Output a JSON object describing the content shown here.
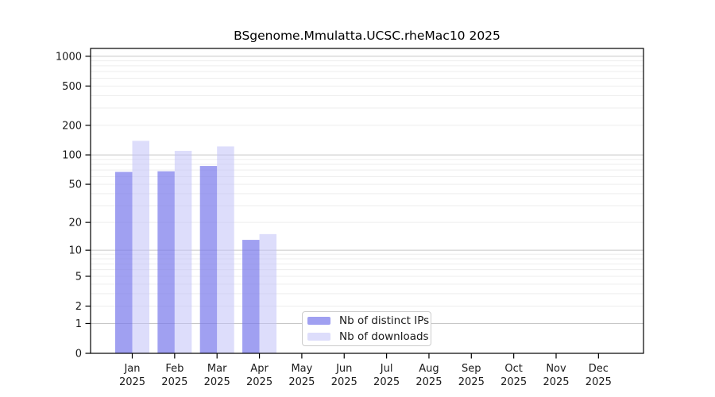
{
  "chart_data": {
    "type": "bar",
    "title": "BSgenome.Mmulatta.UCSC.rheMac10 2025",
    "xlabel": "",
    "ylabel": "",
    "yscale": "log2(1+x)",
    "yticks": [
      0,
      1,
      2,
      5,
      10,
      20,
      50,
      100,
      200,
      500,
      1000
    ],
    "ylim": [
      0,
      1200
    ],
    "grid": {
      "major_values": [
        1,
        10,
        100,
        1000
      ],
      "major_color": "#c6c6c6",
      "minor_color": "#ededed"
    },
    "categories": [
      "Jan 2025",
      "Feb 2025",
      "Mar 2025",
      "Apr 2025",
      "May 2025",
      "Jun 2025",
      "Jul 2025",
      "Aug 2025",
      "Sep 2025",
      "Oct 2025",
      "Nov 2025",
      "Dec 2025"
    ],
    "series": [
      {
        "name": "Nb of distinct IPs",
        "key": "distinct-ips",
        "color": "#7c7ceb",
        "alpha": 0.72,
        "values": [
          67,
          68,
          77,
          13,
          0,
          0,
          0,
          0,
          0,
          0,
          0,
          0
        ]
      },
      {
        "name": "Nb of downloads",
        "key": "downloads",
        "color": "#c1c1f7",
        "alpha": 0.55,
        "values": [
          139,
          110,
          122,
          15,
          0,
          0,
          0,
          0,
          0,
          0,
          0,
          0
        ]
      }
    ],
    "legend_position": "lower center-right inside plot",
    "axis_color": "#000000",
    "text_color": "#1a1a1a"
  }
}
